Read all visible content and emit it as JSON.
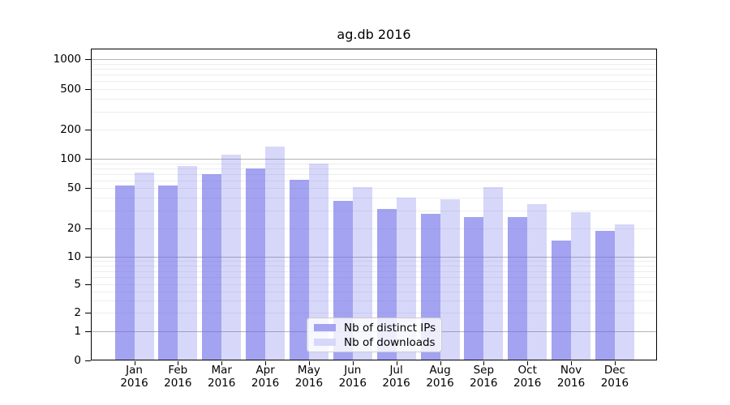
{
  "figure": {
    "title": "ag.db 2016"
  },
  "axes": {
    "y_ticks": [
      {
        "value": 1000,
        "label": "1000"
      },
      {
        "value": 500,
        "label": "500"
      },
      {
        "value": 200,
        "label": "200"
      },
      {
        "value": 100,
        "label": "100"
      },
      {
        "value": 50,
        "label": "50"
      },
      {
        "value": 20,
        "label": "20"
      },
      {
        "value": 10,
        "label": "10"
      },
      {
        "value": 5,
        "label": "5"
      },
      {
        "value": 2,
        "label": "2"
      },
      {
        "value": 1,
        "label": "1"
      },
      {
        "value": 0,
        "label": "0"
      }
    ],
    "x_ticks": [
      {
        "month": "Jan",
        "year": "2016"
      },
      {
        "month": "Feb",
        "year": "2016"
      },
      {
        "month": "Mar",
        "year": "2016"
      },
      {
        "month": "Apr",
        "year": "2016"
      },
      {
        "month": "May",
        "year": "2016"
      },
      {
        "month": "Jun",
        "year": "2016"
      },
      {
        "month": "Jul",
        "year": "2016"
      },
      {
        "month": "Aug",
        "year": "2016"
      },
      {
        "month": "Sep",
        "year": "2016"
      },
      {
        "month": "Oct",
        "year": "2016"
      },
      {
        "month": "Nov",
        "year": "2016"
      },
      {
        "month": "Dec",
        "year": "2016"
      }
    ]
  },
  "legend": {
    "items": [
      {
        "label": "Nb of distinct IPs",
        "color": "#a3a3f1"
      },
      {
        "label": "Nb of downloads",
        "color": "#d7d7f9"
      }
    ]
  },
  "colors": {
    "bar_base": "#6a6ae9",
    "bar_ips_rendered": "#a3a3f1",
    "bar_downloads_rendered": "#d7d7f9",
    "grid_major": "#b3b3b3",
    "grid_minor": "#ededed",
    "axis": "#000000",
    "background": "#ffffff"
  },
  "chart_data": {
    "type": "bar",
    "title": "ag.db 2016",
    "categories": [
      "Jan 2016",
      "Feb 2016",
      "Mar 2016",
      "Apr 2016",
      "May 2016",
      "Jun 2016",
      "Jul 2016",
      "Aug 2016",
      "Sep 2016",
      "Oct 2016",
      "Nov 2016",
      "Dec 2016"
    ],
    "series": [
      {
        "name": "Nb of distinct IPs",
        "values": [
          53,
          53,
          70,
          79,
          61,
          37,
          31,
          28,
          26,
          26,
          15,
          19
        ]
      },
      {
        "name": "Nb of downloads",
        "values": [
          72,
          84,
          110,
          133,
          89,
          51,
          40,
          39,
          51,
          35,
          29,
          22
        ]
      }
    ],
    "yscale": "log-with-zero",
    "yticks": [
      0,
      1,
      2,
      5,
      10,
      20,
      50,
      100,
      200,
      500,
      1000
    ],
    "ylim": [
      0,
      1300
    ],
    "grid": true,
    "legend_position": "lower-center"
  }
}
